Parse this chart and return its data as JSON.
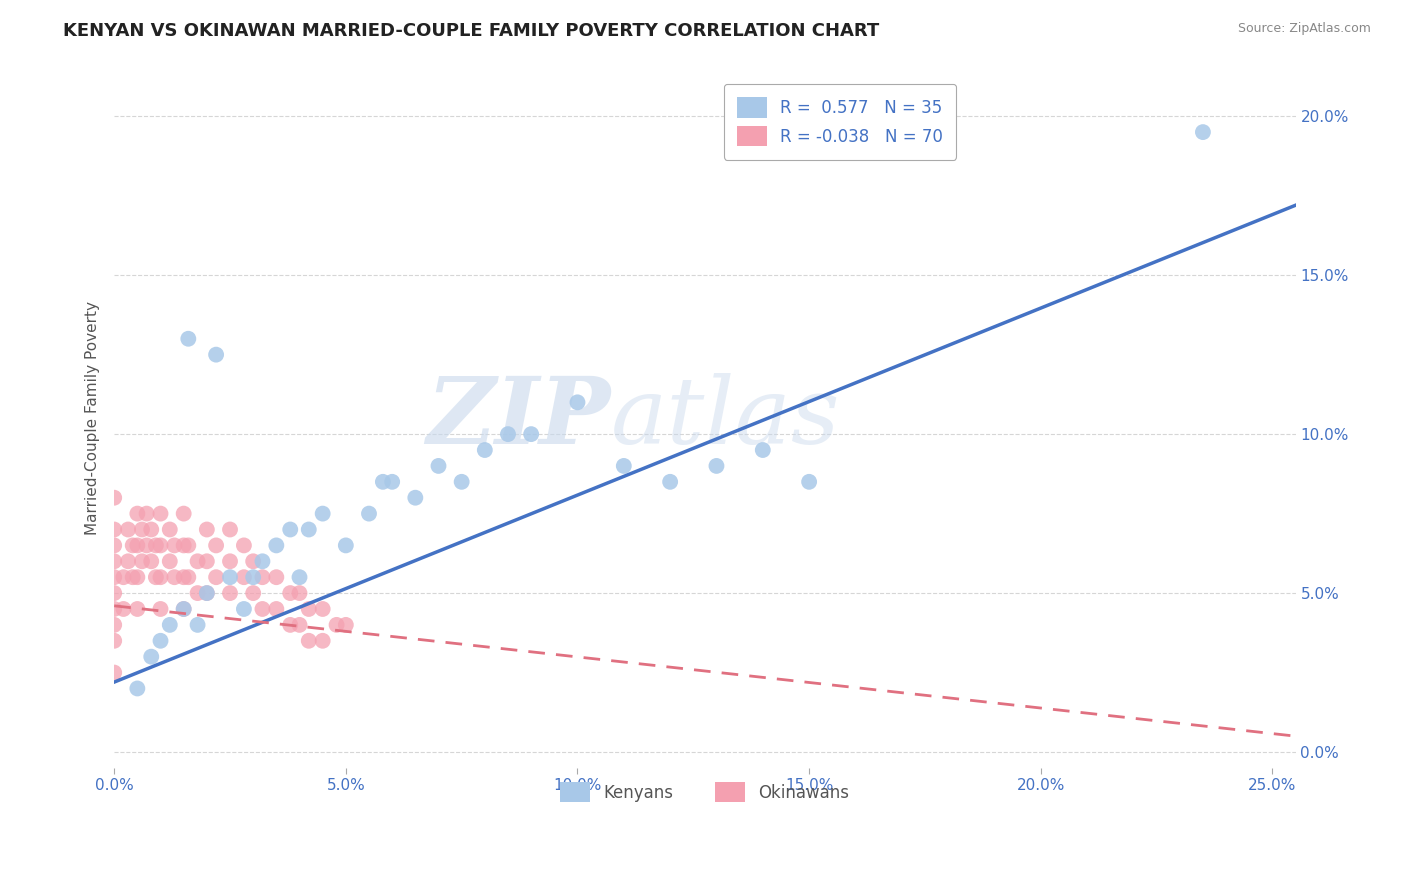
{
  "title": "KENYAN VS OKINAWAN MARRIED-COUPLE FAMILY POVERTY CORRELATION CHART",
  "source": "Source: ZipAtlas.com",
  "ylabel": "Married-Couple Family Poverty",
  "legend_label1": "Kenyans",
  "legend_label2": "Okinawans",
  "R1": 0.577,
  "N1": 35,
  "R2": -0.038,
  "N2": 70,
  "color1": "#a8c8e8",
  "color2": "#f4a0b0",
  "line_color1": "#4472c4",
  "line_color2": "#e07080",
  "xlim": [
    0.0,
    0.255
  ],
  "ylim": [
    -0.005,
    0.215
  ],
  "xticks": [
    0.0,
    0.05,
    0.1,
    0.15,
    0.2,
    0.25
  ],
  "yticks": [
    0.0,
    0.05,
    0.1,
    0.15,
    0.2
  ],
  "watermark_zip": "ZIP",
  "watermark_atlas": "atlas",
  "background_color": "#ffffff",
  "grid_color": "#cccccc",
  "title_fontsize": 13,
  "axis_label_fontsize": 11,
  "tick_fontsize": 11,
  "kenyan_x": [
    0.005,
    0.008,
    0.01,
    0.012,
    0.015,
    0.018,
    0.02,
    0.025,
    0.028,
    0.03,
    0.032,
    0.035,
    0.04,
    0.042,
    0.045,
    0.05,
    0.055,
    0.06,
    0.065,
    0.07,
    0.075,
    0.08,
    0.085,
    0.09,
    0.1,
    0.11,
    0.12,
    0.13,
    0.14,
    0.15,
    0.016,
    0.022,
    0.038,
    0.058,
    0.235
  ],
  "kenyan_y": [
    0.02,
    0.03,
    0.035,
    0.04,
    0.045,
    0.04,
    0.05,
    0.055,
    0.045,
    0.055,
    0.06,
    0.065,
    0.055,
    0.07,
    0.075,
    0.065,
    0.075,
    0.085,
    0.08,
    0.09,
    0.085,
    0.095,
    0.1,
    0.1,
    0.11,
    0.09,
    0.085,
    0.09,
    0.095,
    0.085,
    0.13,
    0.125,
    0.07,
    0.085,
    0.195
  ],
  "okinawan_x": [
    0.0,
    0.0,
    0.0,
    0.0,
    0.0,
    0.0,
    0.0,
    0.0,
    0.0,
    0.0,
    0.002,
    0.002,
    0.003,
    0.003,
    0.004,
    0.004,
    0.005,
    0.005,
    0.005,
    0.005,
    0.006,
    0.006,
    0.007,
    0.007,
    0.008,
    0.008,
    0.009,
    0.009,
    0.01,
    0.01,
    0.01,
    0.01,
    0.012,
    0.012,
    0.013,
    0.013,
    0.015,
    0.015,
    0.015,
    0.015,
    0.016,
    0.016,
    0.018,
    0.018,
    0.02,
    0.02,
    0.02,
    0.022,
    0.022,
    0.025,
    0.025,
    0.025,
    0.028,
    0.028,
    0.03,
    0.03,
    0.032,
    0.032,
    0.035,
    0.035,
    0.038,
    0.038,
    0.04,
    0.04,
    0.042,
    0.042,
    0.045,
    0.045,
    0.048,
    0.05
  ],
  "okinawan_y": [
    0.04,
    0.05,
    0.06,
    0.055,
    0.045,
    0.035,
    0.025,
    0.07,
    0.08,
    0.065,
    0.055,
    0.045,
    0.07,
    0.06,
    0.065,
    0.055,
    0.075,
    0.065,
    0.055,
    0.045,
    0.07,
    0.06,
    0.075,
    0.065,
    0.07,
    0.06,
    0.065,
    0.055,
    0.075,
    0.065,
    0.055,
    0.045,
    0.07,
    0.06,
    0.065,
    0.055,
    0.075,
    0.065,
    0.055,
    0.045,
    0.065,
    0.055,
    0.06,
    0.05,
    0.07,
    0.06,
    0.05,
    0.065,
    0.055,
    0.07,
    0.06,
    0.05,
    0.065,
    0.055,
    0.06,
    0.05,
    0.055,
    0.045,
    0.055,
    0.045,
    0.05,
    0.04,
    0.05,
    0.04,
    0.045,
    0.035,
    0.045,
    0.035,
    0.04,
    0.04
  ]
}
